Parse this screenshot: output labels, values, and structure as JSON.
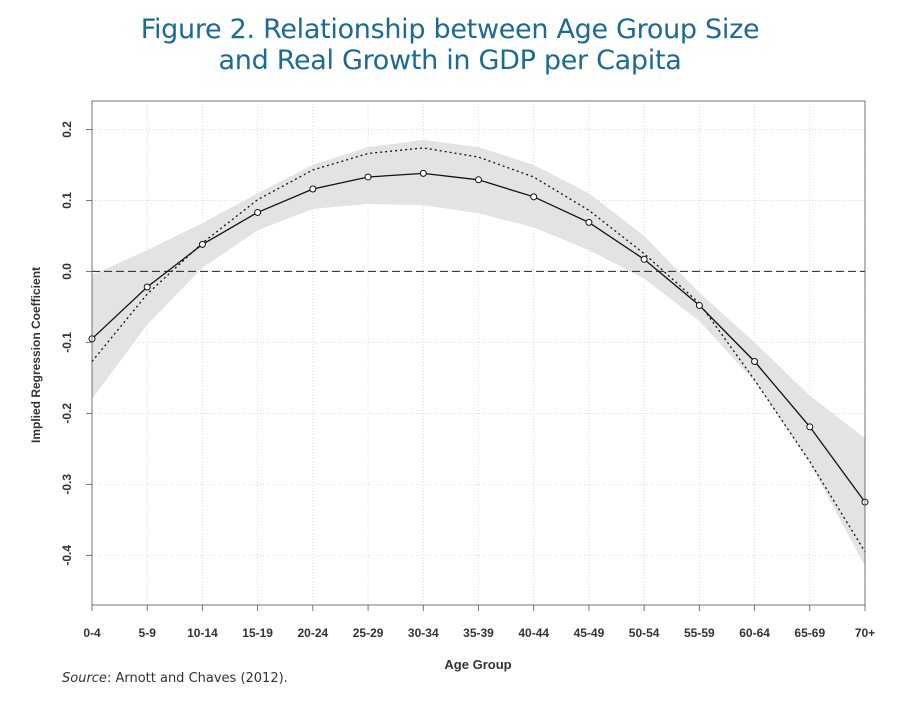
{
  "title": {
    "line1": "Figure 2. Relationship between Age Group Size",
    "line2": "and Real Growth in GDP per Capita"
  },
  "source": {
    "label": "Source",
    "text": ": Arnott and Chaves (2012)."
  },
  "colors": {
    "title": "#1b6a94",
    "band": "#e3e3e3",
    "line": "#111111",
    "grid": "#cccccc"
  },
  "chart_data": {
    "type": "line",
    "xlabel": "Age Group",
    "ylabel": "Implied Regression Coefficient",
    "categories": [
      "0-4",
      "5-9",
      "10-14",
      "15-19",
      "20-24",
      "25-29",
      "30-34",
      "35-39",
      "40-44",
      "45-49",
      "50-54",
      "55-59",
      "60-64",
      "65-69",
      "70+"
    ],
    "ylim": [
      -0.47,
      0.24
    ],
    "yticks": [
      -0.4,
      -0.3,
      -0.2,
      -0.1,
      0.0,
      0.1,
      0.2
    ],
    "ytick_labels": [
      "-0.4",
      "-0.3",
      "-0.2",
      "-0.1",
      "0.0",
      "0.1",
      "0.2"
    ],
    "grid": true,
    "reference_line": 0.0,
    "series": [
      {
        "style": "solid-with-circles",
        "values": [
          -0.095,
          -0.022,
          0.038,
          0.083,
          0.116,
          0.133,
          0.138,
          0.129,
          0.105,
          0.069,
          0.017,
          -0.048,
          -0.127,
          -0.219,
          -0.325
        ]
      },
      {
        "style": "dotted",
        "values": [
          -0.127,
          -0.032,
          0.04,
          0.101,
          0.143,
          0.166,
          0.174,
          0.161,
          0.133,
          0.086,
          0.025,
          -0.045,
          -0.153,
          -0.268,
          -0.395
        ]
      }
    ],
    "confidence_band": {
      "upper": [
        -0.005,
        0.03,
        0.068,
        0.11,
        0.15,
        0.175,
        0.185,
        0.175,
        0.15,
        0.11,
        0.05,
        -0.03,
        -0.1,
        -0.175,
        -0.235
      ],
      "lower": [
        -0.18,
        -0.075,
        0.005,
        0.058,
        0.088,
        0.095,
        0.093,
        0.082,
        0.062,
        0.03,
        -0.01,
        -0.07,
        -0.155,
        -0.27,
        -0.415
      ]
    }
  }
}
